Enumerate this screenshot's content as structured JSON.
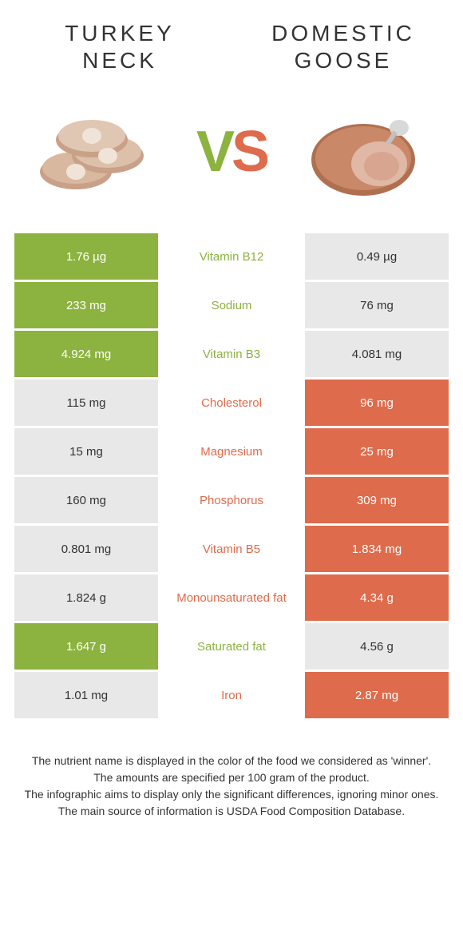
{
  "colors": {
    "left": "#8cb23f",
    "right": "#de6b4b",
    "left_dim": "#e8e8e8",
    "right_dim": "#e8e8e8",
    "cell_text_on_color": "#ffffff",
    "cell_text_on_dim": "#333333"
  },
  "titles": {
    "left_line1": "TURKEY",
    "left_line2": "NECK",
    "right_line1": "DOMESTIC",
    "right_line2": "GOOSE"
  },
  "vs": {
    "v": "V",
    "s": "S"
  },
  "rows": [
    {
      "nutrient": "Vitamin B12",
      "left": "1.76 µg",
      "right": "0.49 µg",
      "winner": "left"
    },
    {
      "nutrient": "Sodium",
      "left": "233 mg",
      "right": "76 mg",
      "winner": "left"
    },
    {
      "nutrient": "Vitamin B3",
      "left": "4.924 mg",
      "right": "4.081 mg",
      "winner": "left"
    },
    {
      "nutrient": "Cholesterol",
      "left": "115 mg",
      "right": "96 mg",
      "winner": "right"
    },
    {
      "nutrient": "Magnesium",
      "left": "15 mg",
      "right": "25 mg",
      "winner": "right"
    },
    {
      "nutrient": "Phosphorus",
      "left": "160 mg",
      "right": "309 mg",
      "winner": "right"
    },
    {
      "nutrient": "Vitamin B5",
      "left": "0.801 mg",
      "right": "1.834 mg",
      "winner": "right"
    },
    {
      "nutrient": "Monounsaturated fat",
      "left": "1.824 g",
      "right": "4.34 g",
      "winner": "right"
    },
    {
      "nutrient": "Saturated fat",
      "left": "1.647 g",
      "right": "4.56 g",
      "winner": "left"
    },
    {
      "nutrient": "Iron",
      "left": "1.01 mg",
      "right": "2.87 mg",
      "winner": "right"
    }
  ],
  "footer": {
    "l1": "The nutrient name is displayed in the color of the food we considered as 'winner'.",
    "l2": "The amounts are specified per 100 gram of the product.",
    "l3": "The infographic aims to display only the significant differences, ignoring minor ones.",
    "l4": "The main source of information is USDA Food Composition Database."
  }
}
